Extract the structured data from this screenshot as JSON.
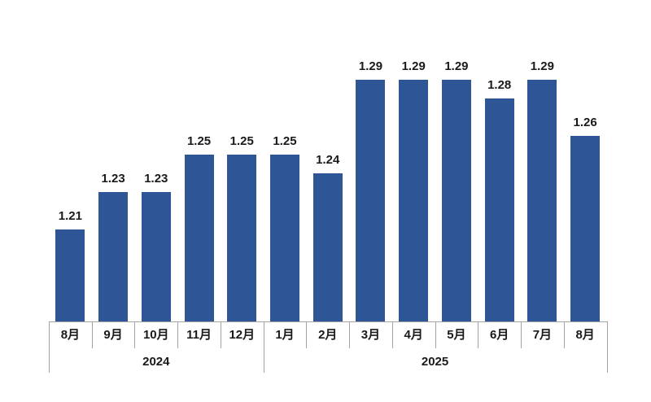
{
  "chart_data": {
    "type": "bar",
    "title": "",
    "xlabel": "",
    "ylabel": "",
    "legend": "none",
    "grid": "off",
    "categories": [
      "8月",
      "9月",
      "10月",
      "11月",
      "12月",
      "1月",
      "2月",
      "3月",
      "4月",
      "5月",
      "6月",
      "7月",
      "8月"
    ],
    "values": [
      1.21,
      1.23,
      1.23,
      1.25,
      1.25,
      1.25,
      1.24,
      1.29,
      1.29,
      1.29,
      1.28,
      1.29,
      1.26
    ],
    "value_labels": [
      "1.21",
      "1.23",
      "1.23",
      "1.25",
      "1.25",
      "1.25",
      "1.24",
      "1.29",
      "1.29",
      "1.29",
      "1.28",
      "1.29",
      "1.26"
    ],
    "year_groups": [
      {
        "label": "2024",
        "start_index": 0,
        "count": 5
      },
      {
        "label": "2025",
        "start_index": 5,
        "count": 8
      }
    ],
    "y_axis_visible": false,
    "approx_y_baseline_value": 1.16,
    "bar_color": "#2E5696",
    "text_color": "#1a1a1a",
    "axis_color": "#a3a3a3",
    "background_color": "#ffffff"
  }
}
